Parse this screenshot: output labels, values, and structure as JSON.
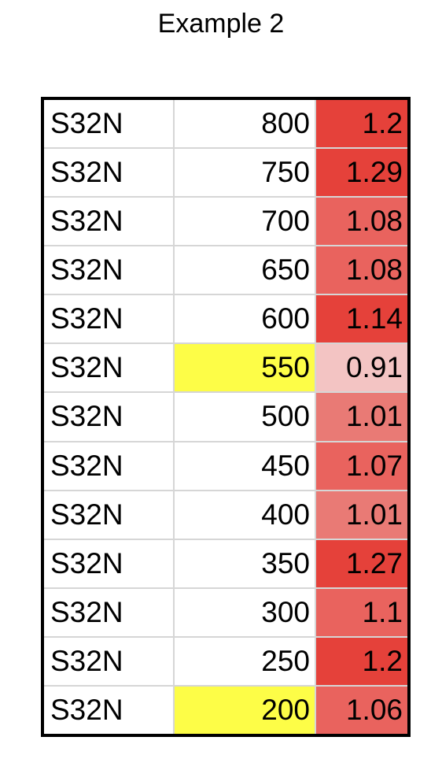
{
  "title": "Example 2",
  "colors": {
    "highlight_yellow": "#fdfd47",
    "ratio_scale": [
      "#f3c4c3",
      "#e97a75",
      "#e9635e",
      "#e5413a"
    ]
  },
  "rows": [
    {
      "label": "S32N",
      "value": "800",
      "ratio": "1.2",
      "ratio_color": "#e5413a",
      "value_highlight": null
    },
    {
      "label": "S32N",
      "value": "750",
      "ratio": "1.29",
      "ratio_color": "#e5413a",
      "value_highlight": null
    },
    {
      "label": "S32N",
      "value": "700",
      "ratio": "1.08",
      "ratio_color": "#e9635e",
      "value_highlight": null
    },
    {
      "label": "S32N",
      "value": "650",
      "ratio": "1.08",
      "ratio_color": "#e9635e",
      "value_highlight": null
    },
    {
      "label": "S32N",
      "value": "600",
      "ratio": "1.14",
      "ratio_color": "#e5413a",
      "value_highlight": null
    },
    {
      "label": "S32N",
      "value": "550",
      "ratio": "0.91",
      "ratio_color": "#f3c4c3",
      "value_highlight": "#fdfd47"
    },
    {
      "label": "S32N",
      "value": "500",
      "ratio": "1.01",
      "ratio_color": "#e97a75",
      "value_highlight": null
    },
    {
      "label": "S32N",
      "value": "450",
      "ratio": "1.07",
      "ratio_color": "#e9635e",
      "value_highlight": null
    },
    {
      "label": "S32N",
      "value": "400",
      "ratio": "1.01",
      "ratio_color": "#e97a75",
      "value_highlight": null
    },
    {
      "label": "S32N",
      "value": "350",
      "ratio": "1.27",
      "ratio_color": "#e5413a",
      "value_highlight": null
    },
    {
      "label": "S32N",
      "value": "300",
      "ratio": "1.1",
      "ratio_color": "#e9635e",
      "value_highlight": null
    },
    {
      "label": "S32N",
      "value": "250",
      "ratio": "1.2",
      "ratio_color": "#e5413a",
      "value_highlight": null
    },
    {
      "label": "S32N",
      "value": "200",
      "ratio": "1.06",
      "ratio_color": "#e9635e",
      "value_highlight": "#fdfd47"
    }
  ]
}
